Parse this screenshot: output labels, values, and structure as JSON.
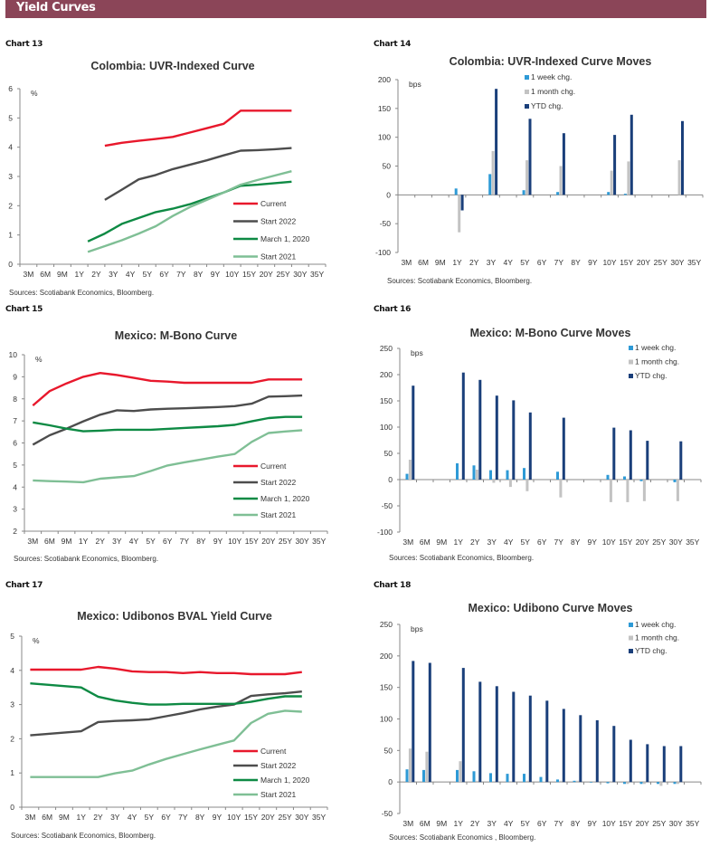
{
  "header": {
    "title": "Yield Curves"
  },
  "colors": {
    "header_bg": "#8b4558",
    "current": "#e8182c",
    "start2022": "#4d4d4d",
    "march2020": "#0e8a44",
    "start2021": "#7fbf95",
    "week": "#2e9ad6",
    "month": "#c3c3c3",
    "ytd": "#1a3f7a"
  },
  "chart_data": [
    {
      "id": "chart13",
      "label": "Chart 13",
      "type": "line",
      "title": "Colombia:  UVR-Indexed Curve",
      "unit": "%",
      "source": "Sources: Scotiabank Economics, Bloomberg.",
      "categories": [
        "3M",
        "6M",
        "9M",
        "1Y",
        "2Y",
        "3Y",
        "4Y",
        "5Y",
        "6Y",
        "7Y",
        "8Y",
        "9Y",
        "10Y",
        "15Y",
        "20Y",
        "25Y",
        "30Y",
        "35Y"
      ],
      "ylim": [
        0,
        6
      ],
      "yticks": [
        0,
        1,
        2,
        3,
        4,
        5,
        6
      ],
      "legend_position": "bottom-right",
      "point_placement": "on-tick",
      "series": [
        {
          "name": "Current",
          "color_key": "current",
          "values": [
            null,
            null,
            null,
            0.55,
            null,
            4.05,
            4.15,
            4.22,
            4.28,
            4.35,
            4.5,
            4.65,
            4.8,
            5.25,
            5.25,
            5.25,
            5.25,
            null
          ]
        },
        {
          "name": "Start 2022",
          "color_key": "start2022",
          "values": [
            null,
            null,
            null,
            0.85,
            null,
            2.2,
            2.55,
            2.9,
            3.05,
            3.25,
            3.4,
            3.55,
            3.72,
            3.88,
            3.9,
            3.93,
            3.97,
            null
          ]
        },
        {
          "name": "March 1, 2020",
          "color_key": "march2020",
          "values": [
            null,
            null,
            null,
            null,
            0.78,
            1.05,
            1.38,
            1.58,
            1.78,
            1.9,
            2.05,
            2.25,
            2.45,
            2.68,
            2.72,
            2.77,
            2.82,
            null
          ]
        },
        {
          "name": "Start 2021",
          "color_key": "start2021",
          "values": [
            null,
            null,
            null,
            null,
            0.42,
            0.62,
            0.82,
            1.05,
            1.3,
            1.65,
            1.95,
            2.2,
            2.45,
            2.72,
            2.88,
            3.03,
            3.18,
            null
          ]
        }
      ]
    },
    {
      "id": "chart14",
      "label": "Chart 14",
      "type": "bar",
      "title": "Colombia:  UVR-Indexed Curve Moves",
      "unit": "bps",
      "source": "Sources: Scotiabank Economics, Bloomberg.",
      "categories": [
        "3M",
        "6M",
        "9M",
        "1Y",
        "2Y",
        "3Y",
        "4Y",
        "5Y",
        "6Y",
        "7Y",
        "8Y",
        "9Y",
        "10Y",
        "15Y",
        "20Y",
        "25Y",
        "30Y",
        "35Y"
      ],
      "ylim": [
        -100,
        200
      ],
      "yticks": [
        -100,
        -50,
        0,
        50,
        100,
        150,
        200
      ],
      "legend_position": "top-center",
      "series": [
        {
          "name": "1 week chg.",
          "color_key": "week",
          "values": [
            null,
            null,
            null,
            11,
            null,
            36,
            null,
            8,
            null,
            5,
            null,
            null,
            5,
            2,
            null,
            null,
            null,
            null
          ]
        },
        {
          "name": "1 month chg.",
          "color_key": "month",
          "values": [
            null,
            null,
            null,
            -65,
            null,
            76,
            null,
            60,
            null,
            50,
            null,
            null,
            42,
            58,
            null,
            null,
            60,
            null
          ]
        },
        {
          "name": "YTD chg.",
          "color_key": "ytd",
          "values": [
            null,
            null,
            null,
            -27,
            null,
            184,
            null,
            132,
            null,
            107,
            null,
            null,
            104,
            139,
            null,
            null,
            128,
            null
          ]
        }
      ]
    },
    {
      "id": "chart15",
      "label": "Chart 15",
      "type": "line",
      "title": "Mexico: M-Bono Curve",
      "unit": "%",
      "source": "Sources: Scotiabank Economics, Bloomberg.",
      "categories": [
        "3M",
        "6M",
        "9M",
        "1Y",
        "2Y",
        "3Y",
        "4Y",
        "5Y",
        "6Y",
        "7Y",
        "8Y",
        "9Y",
        "10Y",
        "15Y",
        "20Y",
        "25Y",
        "30Y",
        "35Y"
      ],
      "ylim": [
        2,
        10
      ],
      "yticks": [
        2,
        3,
        4,
        5,
        6,
        7,
        8,
        9,
        10
      ],
      "legend_position": "bottom-right",
      "point_placement": "between-ticks",
      "series": [
        {
          "name": "Current",
          "color_key": "current",
          "values": [
            7.7,
            8.35,
            8.7,
            9.0,
            9.17,
            9.08,
            8.95,
            8.82,
            8.78,
            8.73,
            8.73,
            8.73,
            8.73,
            8.73,
            8.88,
            8.88,
            8.88,
            null
          ]
        },
        {
          "name": "Start 2022",
          "color_key": "start2022",
          "values": [
            5.92,
            6.35,
            6.65,
            6.98,
            7.28,
            7.48,
            7.45,
            7.52,
            7.55,
            7.57,
            7.6,
            7.63,
            7.67,
            7.78,
            8.1,
            8.12,
            8.15,
            null
          ]
        },
        {
          "name": "March 1, 2020",
          "color_key": "march2020",
          "values": [
            6.93,
            6.8,
            6.65,
            6.53,
            6.56,
            6.6,
            6.6,
            6.6,
            6.64,
            6.68,
            6.72,
            6.76,
            6.82,
            6.98,
            7.13,
            7.18,
            7.18,
            null
          ]
        },
        {
          "name": "Start 2021",
          "color_key": "start2021",
          "values": [
            4.3,
            4.27,
            4.25,
            4.22,
            4.38,
            4.44,
            4.5,
            4.73,
            4.98,
            5.12,
            5.25,
            5.38,
            5.5,
            6.05,
            6.45,
            6.52,
            6.58,
            null
          ]
        }
      ]
    },
    {
      "id": "chart16",
      "label": "Chart 16",
      "type": "bar",
      "title": "Mexico: M-Bono Curve Moves",
      "unit": "bps",
      "source": "Sources: Scotiabank Economics, Bloomberg.",
      "categories": [
        "3M",
        "6M",
        "9M",
        "1Y",
        "2Y",
        "3Y",
        "4Y",
        "5Y",
        "6Y",
        "7Y",
        "8Y",
        "9Y",
        "10Y",
        "15Y",
        "20Y",
        "25Y",
        "30Y",
        "35Y"
      ],
      "ylim": [
        -100,
        250
      ],
      "yticks": [
        -100,
        -50,
        0,
        50,
        100,
        150,
        200,
        250
      ],
      "legend_position": "top-right",
      "series": [
        {
          "name": "1 week chg.",
          "color_key": "week",
          "values": [
            11,
            null,
            null,
            31,
            27,
            18,
            18,
            22,
            null,
            15,
            null,
            null,
            9,
            6,
            -3,
            null,
            -5,
            null
          ]
        },
        {
          "name": "1 month chg.",
          "color_key": "month",
          "values": [
            38,
            null,
            null,
            null,
            19,
            -6,
            -14,
            -22,
            null,
            -34,
            null,
            null,
            -43,
            -43,
            -41,
            null,
            -41,
            null
          ]
        },
        {
          "name": "YTD chg.",
          "color_key": "ytd",
          "values": [
            179,
            null,
            null,
            204,
            190,
            160,
            151,
            128,
            null,
            118,
            null,
            null,
            99,
            94,
            74,
            null,
            73,
            null
          ]
        }
      ]
    },
    {
      "id": "chart17",
      "label": "Chart 17",
      "type": "line",
      "title": "Mexico: Udibonos  BVAL  Yield  Curve",
      "unit": "%",
      "source": "Sources: Scotiabank Economics, Bloomberg.",
      "categories": [
        "3M",
        "6M",
        "9M",
        "1Y",
        "2Y",
        "3Y",
        "4Y",
        "5Y",
        "6Y",
        "7Y",
        "8Y",
        "9Y",
        "10Y",
        "15Y",
        "20Y",
        "25Y",
        "30Y",
        "35Y"
      ],
      "ylim": [
        0,
        5
      ],
      "yticks": [
        0,
        1,
        2,
        3,
        4,
        5
      ],
      "legend_position": "bottom-right",
      "point_placement": "between-ticks",
      "series": [
        {
          "name": "Current",
          "color_key": "current",
          "values": [
            4.02,
            4.02,
            4.02,
            4.02,
            4.1,
            4.05,
            3.97,
            3.95,
            3.95,
            3.92,
            3.95,
            3.92,
            3.92,
            3.89,
            3.89,
            3.89,
            3.95,
            null
          ]
        },
        {
          "name": "Start 2022",
          "color_key": "start2022",
          "values": [
            2.1,
            2.14,
            2.18,
            2.22,
            2.49,
            2.52,
            2.54,
            2.57,
            2.66,
            2.75,
            2.86,
            2.94,
            3.0,
            3.25,
            3.3,
            3.33,
            3.38,
            null
          ]
        },
        {
          "name": "March 1, 2020",
          "color_key": "march2020",
          "values": [
            3.62,
            3.58,
            3.54,
            3.5,
            3.23,
            3.12,
            3.05,
            3.0,
            3.0,
            3.02,
            3.02,
            3.02,
            3.02,
            3.08,
            3.17,
            3.24,
            3.24,
            null
          ]
        },
        {
          "name": "Start 2021",
          "color_key": "start2021",
          "values": [
            0.88,
            0.88,
            0.88,
            0.88,
            0.88,
            0.99,
            1.07,
            1.25,
            1.41,
            1.55,
            1.69,
            1.82,
            1.95,
            2.46,
            2.73,
            2.82,
            2.79,
            null
          ]
        }
      ]
    },
    {
      "id": "chart18",
      "label": "Chart 18",
      "type": "bar",
      "title": "Mexico: Udibono Curve Moves",
      "unit": "bps",
      "source": "Sources: Scotiabank Economics , Bloomberg.",
      "categories": [
        "3M",
        "6M",
        "9M",
        "1Y",
        "2Y",
        "3Y",
        "4Y",
        "5Y",
        "6Y",
        "7Y",
        "8Y",
        "9Y",
        "10Y",
        "15Y",
        "20Y",
        "25Y",
        "30Y",
        "35Y"
      ],
      "ylim": [
        -50,
        250
      ],
      "yticks": [
        -50,
        0,
        50,
        100,
        150,
        200,
        250
      ],
      "legend_position": "top-right",
      "series": [
        {
          "name": "1 week chg.",
          "color_key": "week",
          "values": [
            20,
            19,
            null,
            19,
            17,
            14,
            13,
            13,
            8,
            4,
            2,
            0,
            -2,
            -3,
            -3,
            -3,
            -3,
            null
          ]
        },
        {
          "name": "1 month chg.",
          "color_key": "month",
          "values": [
            53,
            48,
            null,
            33,
            2,
            -1,
            0,
            2,
            1,
            2,
            2,
            0,
            0,
            -3,
            -3,
            -6,
            -3,
            null
          ]
        },
        {
          "name": "YTD chg.",
          "color_key": "ytd",
          "values": [
            192,
            189,
            null,
            181,
            159,
            152,
            143,
            137,
            129,
            116,
            106,
            98,
            89,
            67,
            60,
            57,
            57,
            null
          ]
        }
      ]
    }
  ]
}
